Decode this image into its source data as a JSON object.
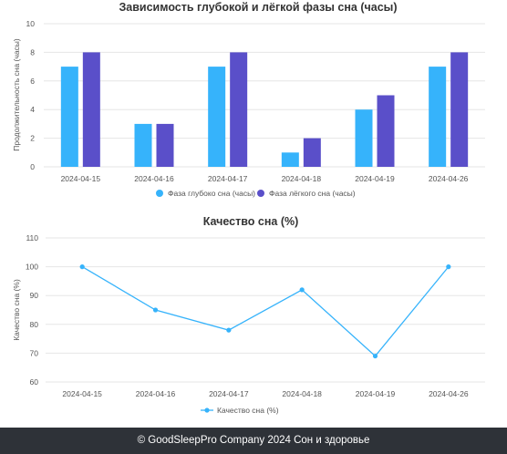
{
  "colors": {
    "deep": "#36b3fb",
    "light": "#5a4fc9",
    "quality": "#36b3fb",
    "grid": "#e6e6e6",
    "footer_bg": "#2e3238"
  },
  "chart_data": [
    {
      "type": "bar",
      "title": "Зависимость глубокой и лёгкой фазы сна (часы)",
      "xlabel": "",
      "ylabel": "Продолжительность сна (часы)",
      "categories": [
        "2024-04-15",
        "2024-04-16",
        "2024-04-17",
        "2024-04-18",
        "2024-04-19",
        "2024-04-26"
      ],
      "series": [
        {
          "name": "Фаза глубоко сна (часы)",
          "values": [
            7,
            3,
            7,
            1,
            4,
            7
          ]
        },
        {
          "name": "Фаза лёгкого сна (часы)",
          "values": [
            8,
            3,
            8,
            2,
            5,
            8
          ]
        }
      ],
      "ylim": [
        0,
        10
      ],
      "yticks": [
        0,
        2,
        4,
        6,
        8,
        10
      ],
      "grid": true,
      "legend": "bottom"
    },
    {
      "type": "line",
      "title": "Качество сна (%)",
      "xlabel": "",
      "ylabel": "Качество сна (%)",
      "categories": [
        "2024-04-15",
        "2024-04-16",
        "2024-04-17",
        "2024-04-18",
        "2024-04-19",
        "2024-04-26"
      ],
      "series": [
        {
          "name": "Качество сна (%)",
          "values": [
            100,
            85,
            78,
            92,
            69,
            100
          ]
        }
      ],
      "ylim": [
        60,
        110
      ],
      "yticks": [
        60,
        70,
        80,
        90,
        100,
        110
      ],
      "grid": true,
      "legend": "bottom"
    }
  ],
  "footer": {
    "text": "© GoodSleepPro Company 2024 Сон и здоровье"
  }
}
